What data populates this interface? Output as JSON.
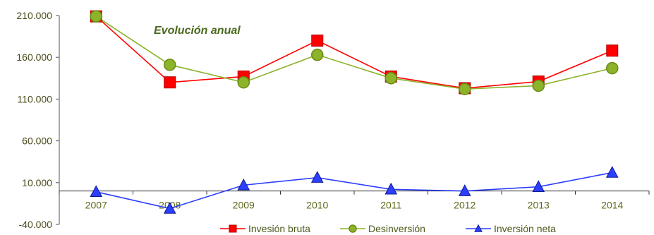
{
  "chart_data": {
    "type": "line",
    "title": "",
    "annotation": "Evolución anual",
    "xlabel": "",
    "ylabel": "",
    "categories": [
      "2007",
      "2008",
      "2009",
      "2010",
      "2011",
      "2012",
      "2013",
      "2014"
    ],
    "ylim": [
      -40000,
      210000
    ],
    "yticks": [
      210000,
      160000,
      110000,
      60000,
      10000,
      -40000
    ],
    "ytick_labels": [
      "210.000",
      "160.000",
      "110.000",
      "60.000",
      "10.000",
      "-40.000"
    ],
    "grid": false,
    "legend_position": "bottom",
    "series": [
      {
        "name": "Invesión bruta",
        "color": "#ff0000",
        "marker": "square",
        "values": [
          209000,
          130000,
          137000,
          180000,
          137000,
          123000,
          131000,
          168000
        ]
      },
      {
        "name": "Desinversión",
        "color": "#8db32b",
        "marker": "circle",
        "values": [
          209000,
          151000,
          130000,
          163000,
          135000,
          122000,
          126000,
          147000
        ]
      },
      {
        "name": "Inversión neta",
        "color": "#2b3fff",
        "marker": "triangle",
        "values": [
          -1000,
          -21000,
          7000,
          16000,
          2000,
          0,
          5000,
          22000
        ]
      }
    ]
  }
}
